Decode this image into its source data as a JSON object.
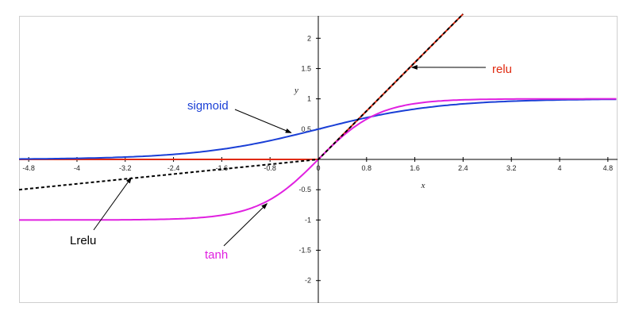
{
  "chart_data": {
    "type": "line",
    "xlabel": "x",
    "ylabel": "y",
    "xlim": [
      -4.96,
      4.96
    ],
    "ylim": [
      -2.37,
      2.37
    ],
    "x_ticks": [
      -4.8,
      -4,
      -3.2,
      -2.4,
      -1.6,
      -0.8,
      0,
      0.8,
      1.6,
      2.4,
      3.2,
      4,
      4.8
    ],
    "x_tick_labels": [
      "-4.8",
      "-4",
      "-3.2",
      "-2.4",
      "-1.6",
      "-0.8",
      "0",
      "0.8",
      "1.6",
      "2.4",
      "3.2",
      "4",
      "4.8"
    ],
    "y_ticks": [
      -2,
      -1.5,
      -1,
      -0.5,
      0.5,
      1,
      1.5,
      2
    ],
    "y_tick_labels": [
      "-2",
      "-1.5",
      "-1",
      "-0.5",
      "0.5",
      "1",
      "1.5",
      "2"
    ],
    "series": [
      {
        "name": "sigmoid",
        "color": "#1a3fd6",
        "style": "solid",
        "x": [
          -5,
          -4,
          -3,
          -2,
          -1,
          0,
          1,
          2,
          3,
          4,
          5
        ],
        "y": [
          0.007,
          0.018,
          0.047,
          0.119,
          0.269,
          0.5,
          0.731,
          0.881,
          0.953,
          0.982,
          0.993
        ]
      },
      {
        "name": "tanh",
        "color": "#e020e0",
        "style": "solid",
        "x": [
          -5,
          -3,
          -2,
          -1.5,
          -1,
          -0.5,
          0,
          0.5,
          1,
          1.5,
          2,
          3,
          5
        ],
        "y": [
          -1,
          -0.995,
          -0.964,
          -0.905,
          -0.762,
          -0.462,
          0,
          0.462,
          0.762,
          0.905,
          0.964,
          0.995,
          1
        ]
      },
      {
        "name": "relu",
        "color": "#e02a10",
        "style": "solid",
        "x": [
          -5,
          0,
          2.4
        ],
        "y": [
          0,
          0,
          2.4
        ]
      },
      {
        "name": "Lrelu",
        "color": "#000000",
        "style": "dashed",
        "x": [
          -5,
          0,
          2.4
        ],
        "y": [
          -0.5,
          0,
          2.4
        ]
      }
    ],
    "annotations": [
      {
        "text": "sigmoid",
        "color": "#1a3fd6",
        "points_to": [
          -0.45,
          0.44
        ]
      },
      {
        "text": "relu",
        "color": "#e02a10",
        "points_to": [
          1.55,
          1.52
        ]
      },
      {
        "text": "Lrelu",
        "color": "#000000",
        "points_to": [
          -3.1,
          -0.3
        ]
      },
      {
        "text": "tanh",
        "color": "#e020e0",
        "points_to": [
          -0.85,
          -0.73
        ]
      }
    ]
  }
}
